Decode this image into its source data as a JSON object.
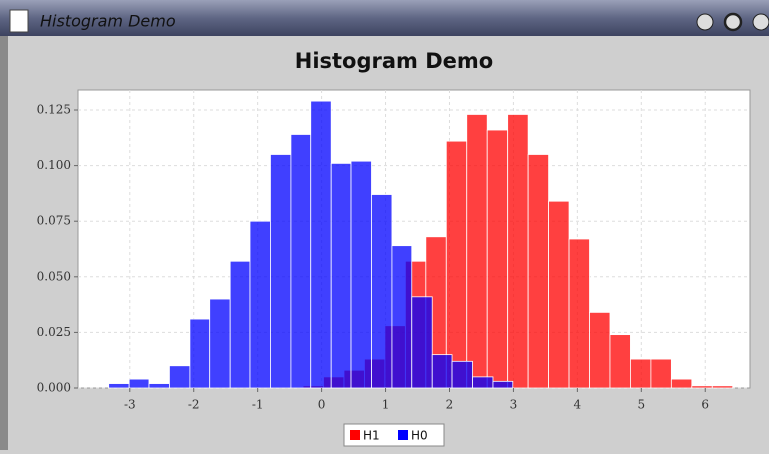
{
  "window": {
    "title": "Histogram Demo"
  },
  "chart_data": {
    "type": "histogram",
    "title": "Histogram Demo",
    "xlim": [
      -3.81,
      6.7
    ],
    "ylim": [
      0,
      0.134
    ],
    "xticks": [
      -3,
      -2,
      -1,
      0,
      1,
      2,
      3,
      4,
      5,
      6
    ],
    "yticks": [
      {
        "value": 0,
        "label": "0.000"
      },
      {
        "value": 0.025,
        "label": "0.025"
      },
      {
        "value": 0.05,
        "label": "0.050"
      },
      {
        "value": 0.075,
        "label": "0.075"
      },
      {
        "value": 0.1,
        "label": "0.100"
      },
      {
        "value": 0.125,
        "label": "0.125"
      }
    ],
    "grid": true,
    "legend": "bottom",
    "series": [
      {
        "name": "H1",
        "color": "#ff0000",
        "bins": [
          -0.29,
          0.03,
          0.35,
          0.67,
          0.99,
          1.31,
          1.63,
          1.95,
          2.27,
          2.59,
          2.91,
          3.23,
          3.55,
          3.87,
          4.19,
          4.51,
          4.83,
          5.15,
          5.47,
          5.79,
          6.11,
          6.43
        ],
        "values": [
          0.001,
          0.005,
          0.008,
          0.013,
          0.028,
          0.057,
          0.068,
          0.111,
          0.123,
          0.116,
          0.123,
          0.105,
          0.084,
          0.067,
          0.034,
          0.024,
          0.013,
          0.013,
          0.004,
          0.001,
          0.001
        ]
      },
      {
        "name": "H0",
        "color": "#0000ff",
        "bins": [
          -3.33,
          -3.01,
          -2.7,
          -2.38,
          -2.06,
          -1.75,
          -1.43,
          -1.12,
          -0.8,
          -0.48,
          -0.17,
          0.15,
          0.46,
          0.78,
          1.1,
          1.41,
          1.73,
          2.04,
          2.36,
          2.68,
          2.99
        ],
        "values": [
          0.002,
          0.004,
          0.002,
          0.01,
          0.031,
          0.04,
          0.057,
          0.075,
          0.105,
          0.114,
          0.129,
          0.101,
          0.102,
          0.087,
          0.064,
          0.041,
          0.015,
          0.012,
          0.005,
          0.003
        ]
      }
    ]
  }
}
